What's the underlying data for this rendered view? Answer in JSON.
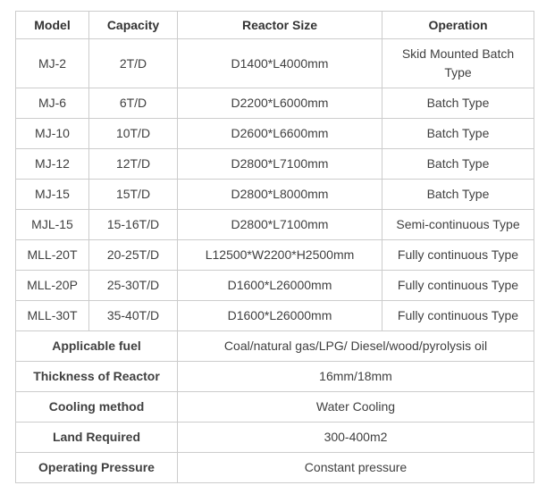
{
  "table": {
    "headers": [
      "Model",
      "Capacity",
      "Reactor Size",
      "Operation"
    ],
    "rows": [
      {
        "model": "MJ-2",
        "capacity": "2T/D",
        "size": "D1400*L4000mm",
        "operation": "Skid Mounted Batch Type"
      },
      {
        "model": "MJ-6",
        "capacity": "6T/D",
        "size": "D2200*L6000mm",
        "operation": "Batch Type"
      },
      {
        "model": "MJ-10",
        "capacity": "10T/D",
        "size": "D2600*L6600mm",
        "operation": "Batch Type"
      },
      {
        "model": "MJ-12",
        "capacity": "12T/D",
        "size": "D2800*L7100mm",
        "operation": "Batch Type"
      },
      {
        "model": "MJ-15",
        "capacity": "15T/D",
        "size": "D2800*L8000mm",
        "operation": "Batch Type"
      },
      {
        "model": "MJL-15",
        "capacity": "15-16T/D",
        "size": "D2800*L7100mm",
        "operation": "Semi-continuous Type"
      },
      {
        "model": "MLL-20T",
        "capacity": "20-25T/D",
        "size": "L12500*W2200*H2500mm",
        "operation": "Fully continuous Type"
      },
      {
        "model": "MLL-20P",
        "capacity": "25-30T/D",
        "size": "D1600*L26000mm",
        "operation": "Fully continuous Type"
      },
      {
        "model": "MLL-30T",
        "capacity": "35-40T/D",
        "size": "D1600*L26000mm",
        "operation": "Fully continuous Type"
      }
    ],
    "specs": [
      {
        "label": "Applicable fuel",
        "value": "Coal/natural gas/LPG/ Diesel/wood/pyrolysis oil"
      },
      {
        "label": "Thickness of Reactor",
        "value": "16mm/18mm"
      },
      {
        "label": "Cooling method",
        "value": "Water Cooling"
      },
      {
        "label": "Land Required",
        "value": "300-400m2"
      },
      {
        "label": "Operating Pressure",
        "value": "Constant pressure"
      }
    ],
    "colors": {
      "border": "#cccccc",
      "header_text": "#333333",
      "body_text": "#404040",
      "background": "#ffffff"
    }
  }
}
